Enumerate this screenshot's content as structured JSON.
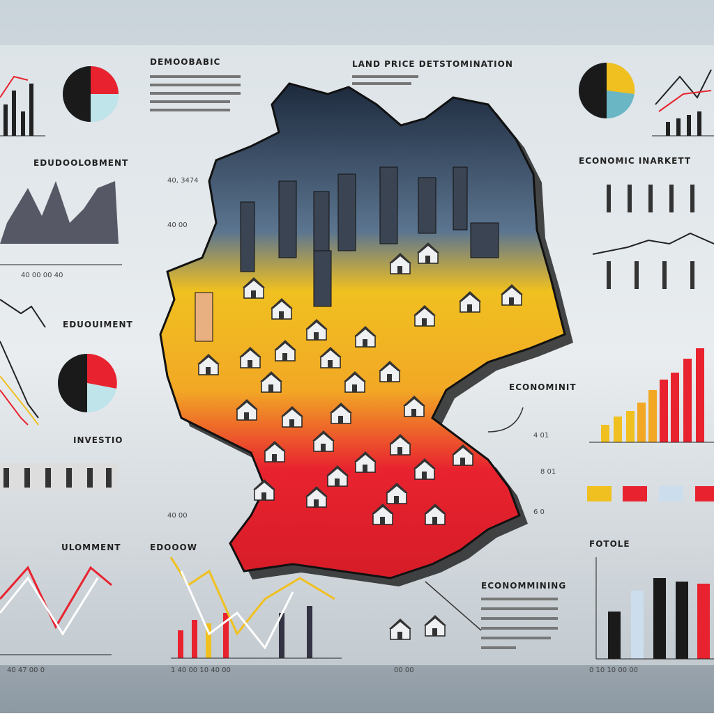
{
  "labels": [
    "DEMOOBABIC",
    "LAND PRICE DETSTOMINATION",
    "EDUDOOLOBMENT",
    "ECONOMIC INARKETT",
    "EDUOUIMENT",
    "INVESTIO",
    "ECONOMINIT",
    "ULOMMENT",
    "EDOOOW",
    "ECONOMMINING",
    "FOTOLE"
  ],
  "ticks": [
    "40 00 00 40",
    "40 47 00 0",
    "1 40 00 10 40 00",
    "00 00",
    "0 10 10 00 00",
    "40, 3474",
    "40 00",
    "40 00",
    "4 01",
    "8 01",
    "6 0"
  ]
}
